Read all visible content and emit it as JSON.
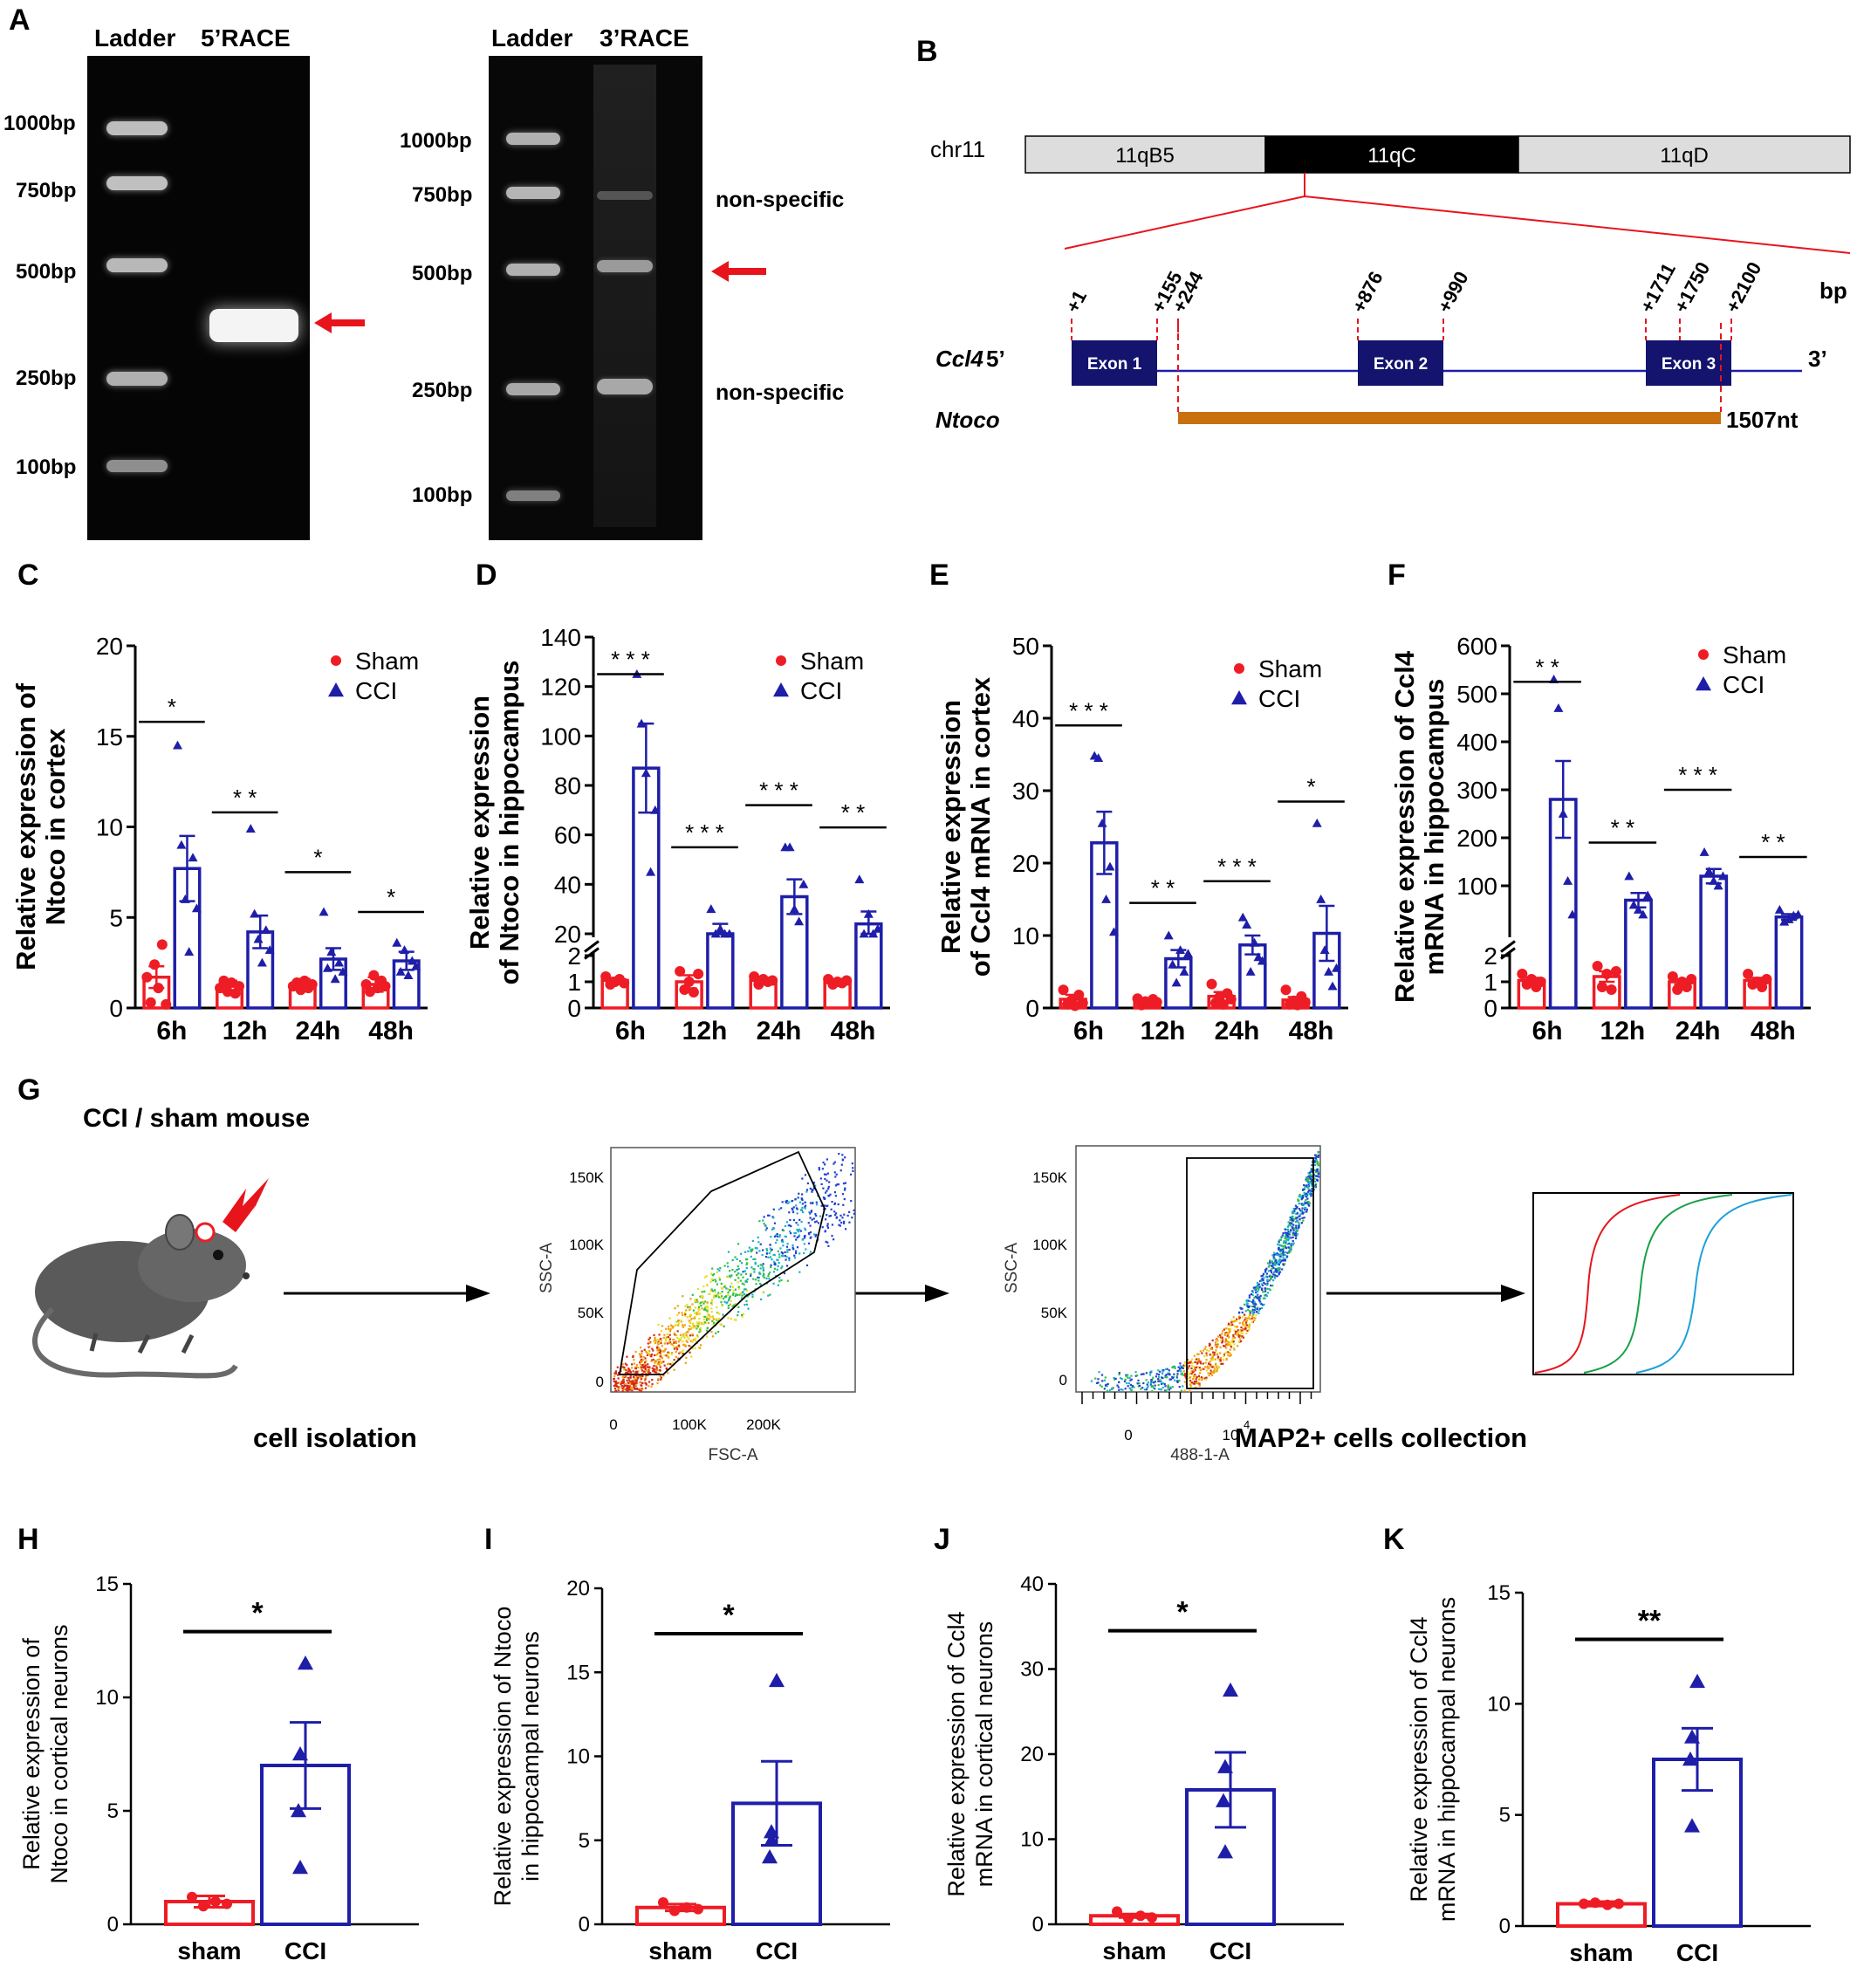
{
  "panels": {
    "A": "A",
    "B": "B",
    "C": "C",
    "D": "D",
    "E": "E",
    "F": "F",
    "G": "G",
    "H": "H",
    "I": "I",
    "J": "J",
    "K": "K"
  },
  "gel1": {
    "header_ladder": "Ladder",
    "header_sample": "5’RACE",
    "ladder_labels": [
      "1000bp",
      "750bp",
      "500bp",
      "250bp",
      "100bp"
    ]
  },
  "gel2": {
    "header_ladder": "Ladder",
    "header_sample": "3’RACE",
    "ladder_labels": [
      "1000bp",
      "750bp",
      "500bp",
      "250bp",
      "100bp"
    ],
    "annot_top": "non-specific",
    "annot_bottom": "non-specific"
  },
  "colors": {
    "sham": "#ee1c25",
    "cci": "#1e1ea8",
    "navy": "#14146e",
    "orange": "#c8700f",
    "arrow_red": "#e8141c"
  },
  "gene": {
    "chr": "chr11",
    "bands": [
      "11qB5",
      "11qC",
      "11qD"
    ],
    "positions": [
      "+1",
      "+155",
      "+244",
      "+876",
      "+990",
      "+1711",
      "+1750",
      "+2100"
    ],
    "unit": "bp",
    "gene_name": "Ccl4",
    "five": "5’",
    "three": "3’",
    "exons": [
      "Exon 1",
      "Exon 2",
      "Exon 3"
    ],
    "lnc_name": "Ntoco",
    "lnc_len": "1507nt"
  },
  "flow": {
    "title": "CCI / sham mouse",
    "step1": "cell isolation",
    "step2": "MAP2+ cells collection",
    "plot1": {
      "ylabel": "SSC-A",
      "xlabel": "FSC-A",
      "yticks": [
        "150K",
        "100K",
        "50K",
        "0"
      ],
      "xticks": [
        "0",
        "100K",
        "200K"
      ]
    },
    "plot2": {
      "ylabel": "SSC-A",
      "xlabel": "488-1-A",
      "yticks": [
        "150K",
        "100K",
        "50K",
        "0"
      ],
      "xticks": [
        "0",
        "10"
      ],
      "xsup": "4"
    }
  },
  "chart_data": [
    {
      "id": "C",
      "type": "bar",
      "categories": [
        "6h",
        "12h",
        "24h",
        "48h"
      ],
      "ylabel_lines": [
        "Relative expression of",
        "Ntoco in cortex"
      ],
      "ylim": [
        0,
        20
      ],
      "yticks": [
        "0",
        "5",
        "10",
        "15",
        "20"
      ],
      "legend": [
        "Sham",
        "CCI"
      ],
      "series": [
        {
          "name": "Sham",
          "values": [
            1.7,
            1.2,
            1.3,
            1.3
          ],
          "err": [
            0.6,
            0.3,
            0.3,
            0.4
          ],
          "points": [
            [
              1.7,
              0.3,
              2.4,
              1.1,
              3.5,
              0.2
            ],
            [
              1.1,
              1.5,
              0.9,
              1.4,
              0.8,
              1.2
            ],
            [
              1.2,
              1.4,
              1.0,
              1.5,
              1.1,
              1.3
            ],
            [
              1.3,
              0.9,
              1.8,
              1.1,
              1.5,
              1.2
            ]
          ]
        },
        {
          "name": "CCI",
          "values": [
            7.7,
            4.2,
            2.7,
            2.6
          ],
          "err": [
            1.8,
            0.9,
            0.6,
            0.5
          ],
          "points": [
            [
              14.5,
              9.0,
              6.0,
              3.1,
              8.3,
              5.5
            ],
            [
              9.9,
              5.2,
              3.8,
              2.5,
              4.3,
              3.2
            ],
            [
              5.3,
              2.2,
              3.1,
              1.6,
              2.5,
              2.0
            ],
            [
              3.6,
              2.0,
              3.2,
              1.8,
              2.6,
              2.3
            ]
          ]
        }
      ],
      "significance": [
        "*",
        "* *",
        "*",
        "*"
      ],
      "sig_values": [
        15.8,
        10.8,
        7.5,
        5.3
      ]
    },
    {
      "id": "D",
      "type": "bar",
      "categories": [
        "6h",
        "12h",
        "24h",
        "48h"
      ],
      "ylabel_lines": [
        "Relative expression",
        "of Ntoco in hippocampus"
      ],
      "ylim": [
        0,
        140
      ],
      "yticks_low": [
        "0",
        "1",
        "2"
      ],
      "yticks_high": [
        "20",
        "40",
        "60",
        "80",
        "100",
        "120",
        "140"
      ],
      "legend": [
        "Sham",
        "CCI"
      ],
      "series": [
        {
          "name": "Sham",
          "values": [
            1.05,
            1.0,
            1.05,
            1.0
          ],
          "err": [
            0.1,
            0.25,
            0.1,
            0.1
          ],
          "points": [
            [
              1.2,
              0.9,
              1.0,
              1.1,
              0.95
            ],
            [
              1.4,
              0.7,
              1.0,
              0.6,
              1.3
            ],
            [
              1.2,
              0.9,
              1.1,
              1.0,
              1.05
            ],
            [
              1.1,
              0.9,
              1.0,
              0.95,
              1.05
            ]
          ]
        },
        {
          "name": "CCI",
          "values": [
            87,
            20,
            35,
            24
          ],
          "err": [
            18,
            4,
            7,
            5
          ],
          "points": [
            [
              125,
              105,
              85,
              45,
              70
            ],
            [
              30,
              15,
              22,
              17,
              18
            ],
            [
              55,
              55,
              30,
              25,
              40
            ],
            [
              42,
              15,
              28,
              20,
              22
            ]
          ]
        }
      ],
      "significance": [
        "* * *",
        "* * *",
        "* * *",
        "* *"
      ],
      "sig_values": [
        125,
        55,
        72,
        63
      ]
    },
    {
      "id": "E",
      "type": "bar",
      "categories": [
        "6h",
        "12h",
        "24h",
        "48h"
      ],
      "ylabel_lines": [
        "Relative expression",
        "of Ccl4 mRNA in cortex"
      ],
      "ylim": [
        0,
        50
      ],
      "yticks": [
        "0",
        "10",
        "20",
        "30",
        "40",
        "50"
      ],
      "legend": [
        "Sham",
        "CCI"
      ],
      "series": [
        {
          "name": "Sham",
          "values": [
            1.2,
            0.9,
            1.6,
            1.1
          ],
          "err": [
            0.6,
            0.3,
            0.6,
            0.4
          ],
          "points": [
            [
              2.5,
              0.5,
              1.0,
              0.3,
              1.8,
              0.7
            ],
            [
              1.3,
              0.4,
              0.9,
              0.6,
              1.2,
              0.8
            ],
            [
              3.3,
              0.7,
              1.5,
              0.5,
              2.0,
              1.2
            ],
            [
              2.5,
              0.5,
              1.0,
              0.4,
              1.6,
              0.8
            ]
          ]
        },
        {
          "name": "CCI",
          "values": [
            22.8,
            6.8,
            8.7,
            10.3
          ],
          "err": [
            4.3,
            1.2,
            1.3,
            3.8
          ],
          "points": [
            [
              34.8,
              34.5,
              25.5,
              15.0,
              19.5,
              10.5
            ],
            [
              10.0,
              6.0,
              3.5,
              8.0,
              5.0,
              7.5
            ],
            [
              12.5,
              11.5,
              5.0,
              9.0,
              7.0,
              6.5
            ],
            [
              25.5,
              15.0,
              8.0,
              5.0,
              3.0,
              5.5
            ]
          ]
        }
      ],
      "significance": [
        "* * *",
        "* *",
        "* * *",
        "*"
      ],
      "sig_values": [
        39,
        14.5,
        17.5,
        28.5
      ]
    },
    {
      "id": "F",
      "type": "bar",
      "categories": [
        "6h",
        "12h",
        "24h",
        "48h"
      ],
      "ylabel_lines": [
        "Relative expression of Ccl4",
        "mRNA in hippocampus"
      ],
      "ylim": [
        0,
        600
      ],
      "yticks_low": [
        "0",
        "1",
        "2"
      ],
      "yticks_high": [
        "100",
        "200",
        "300",
        "400",
        "500",
        "600"
      ],
      "legend": [
        "Sham",
        "CCI"
      ],
      "series": [
        {
          "name": "Sham",
          "values": [
            1.05,
            1.2,
            1.0,
            1.05
          ],
          "err": [
            0.1,
            0.2,
            0.1,
            0.1
          ],
          "points": [
            [
              1.3,
              0.9,
              1.1,
              0.8,
              1.0
            ],
            [
              1.6,
              0.8,
              1.3,
              0.7,
              1.4
            ],
            [
              1.2,
              0.7,
              1.0,
              0.8,
              1.1
            ],
            [
              1.3,
              0.9,
              1.0,
              0.8,
              1.1
            ]
          ]
        },
        {
          "name": "CCI",
          "values": [
            280,
            70,
            120,
            35
          ],
          "err": [
            80,
            15,
            15,
            6
          ],
          "points": [
            [
              530,
              470,
              250,
              110,
              40
            ],
            [
              120,
              60,
              50,
              40,
              80
            ],
            [
              170,
              130,
              110,
              100,
              120
            ],
            [
              50,
              25,
              30,
              38,
              40
            ]
          ]
        }
      ],
      "significance": [
        "* *",
        "* *",
        "* * *",
        "* *"
      ],
      "sig_values": [
        525,
        190,
        300,
        160
      ]
    },
    {
      "id": "H",
      "type": "bar",
      "categories": [
        "sham",
        "CCI"
      ],
      "ylabel_lines": [
        "Relative expression of",
        "Ntoco in cortical neurons"
      ],
      "ylim": [
        0,
        15
      ],
      "yticks": [
        "0",
        "5",
        "10",
        "15"
      ],
      "values": [
        1.0,
        7.0
      ],
      "err": [
        0.25,
        1.9
      ],
      "points": [
        [
          1.2,
          0.8,
          1.0,
          0.9
        ],
        [
          11.5,
          7.5,
          5.0,
          2.5
        ]
      ],
      "significance": "*",
      "sig_value": 12.9
    },
    {
      "id": "I",
      "type": "bar",
      "categories": [
        "sham",
        "CCI"
      ],
      "ylabel_lines": [
        "Relative expression of Ntoco",
        "in hippocampal neurons"
      ],
      "ylim": [
        0,
        20
      ],
      "yticks": [
        "0",
        "5",
        "10",
        "15",
        "20"
      ],
      "values": [
        1.0,
        7.2
      ],
      "err": [
        0.2,
        2.5
      ],
      "points": [
        [
          1.3,
          0.8,
          1.0,
          0.9
        ],
        [
          14.5,
          5.5,
          4.0,
          5.0
        ]
      ],
      "significance": "*",
      "sig_value": 17.3
    },
    {
      "id": "J",
      "type": "bar",
      "categories": [
        "sham",
        "CCI"
      ],
      "ylabel_lines": [
        "Relative expression of Ccl4",
        "mRNA in cortical neurons"
      ],
      "ylim": [
        0,
        40
      ],
      "yticks": [
        "0",
        "10",
        "20",
        "30",
        "40"
      ],
      "values": [
        1.0,
        15.8
      ],
      "err": [
        0.2,
        4.4
      ],
      "points": [
        [
          1.5,
          0.7,
          1.0,
          0.8
        ],
        [
          27.5,
          18.5,
          14.5,
          8.5
        ]
      ],
      "significance": "*",
      "sig_value": 34.5
    },
    {
      "id": "K",
      "type": "bar",
      "categories": [
        "sham",
        "CCI"
      ],
      "ylabel_lines": [
        "Relative expression of  Ccl4",
        "mRNA in hippocampal neurons"
      ],
      "ylim": [
        0,
        15
      ],
      "yticks": [
        "0",
        "5",
        "10",
        "15"
      ],
      "values": [
        1.0,
        7.5
      ],
      "err": [
        0.1,
        1.4
      ],
      "points": [
        [
          1.0,
          1.05,
          0.95,
          1.0
        ],
        [
          11.0,
          8.5,
          7.5,
          4.5
        ]
      ],
      "significance": "**",
      "sig_value": 12.9
    }
  ]
}
